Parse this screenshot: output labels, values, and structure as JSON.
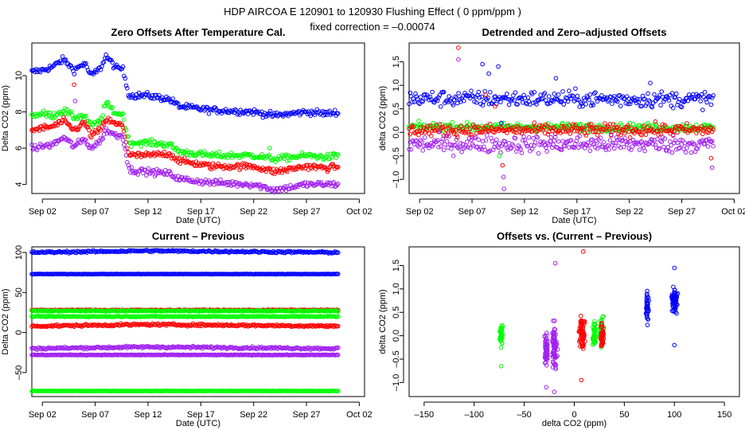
{
  "figure": {
    "title": "HDP   AIRCOA E   120901 to 120930   Flushing Effect ( 0 ppm/ppm )",
    "subtitle": "fixed correction = –0.00074"
  },
  "colors": {
    "blue": "#0000ff",
    "green": "#00ff00",
    "red": "#ff0000",
    "purple": "#a020f0"
  },
  "chart_data": [
    {
      "id": "zero-offsets",
      "type": "scatter",
      "title": "Zero Offsets After Temperature Cal.",
      "xlabel": "Date (UTC)",
      "ylabel": "Delta CO2 (ppm)",
      "xlim": [
        0,
        31.5
      ],
      "ylim": [
        3.5,
        11.8
      ],
      "xticks": [
        1,
        6,
        11,
        16,
        21,
        26,
        31
      ],
      "xticklabels": [
        "Sep 02",
        "Sep 07",
        "Sep 12",
        "Sep 17",
        "Sep 22",
        "Sep 27",
        "Oct 02"
      ],
      "yticks": [
        4,
        6,
        8,
        10
      ],
      "yticklabels": [
        "4",
        "6",
        "8",
        "10"
      ],
      "series": [
        {
          "name": "blue",
          "color": "blue",
          "noise": 0.12,
          "segments": [
            [
              0,
              10.2
            ],
            [
              1,
              10.3
            ],
            [
              2,
              10.5
            ],
            [
              3,
              10.9
            ],
            [
              4,
              10.3
            ],
            [
              5,
              10.7
            ],
            [
              5.6,
              10.0
            ],
            [
              6.5,
              10.4
            ],
            [
              7,
              11.1
            ],
            [
              8,
              10.4
            ],
            [
              8.6,
              10.4
            ],
            [
              9.2,
              8.9
            ],
            [
              11,
              8.9
            ],
            [
              13,
              8.7
            ],
            [
              14,
              8.3
            ],
            [
              17,
              8.1
            ],
            [
              21,
              8.0
            ],
            [
              23,
              7.8
            ],
            [
              26,
              8.0
            ],
            [
              28,
              7.9
            ],
            [
              29,
              8.0
            ]
          ]
        },
        {
          "name": "green",
          "color": "green",
          "noise": 0.12,
          "segments": [
            [
              0,
              7.8
            ],
            [
              1,
              7.9
            ],
            [
              2,
              7.8
            ],
            [
              3,
              8.1
            ],
            [
              4,
              7.7
            ],
            [
              5,
              7.8
            ],
            [
              5.6,
              7.2
            ],
            [
              6.5,
              7.5
            ],
            [
              7,
              8.5
            ],
            [
              8,
              7.9
            ],
            [
              8.6,
              7.9
            ],
            [
              9.2,
              6.3
            ],
            [
              11,
              6.3
            ],
            [
              13,
              6.2
            ],
            [
              14,
              5.8
            ],
            [
              17,
              5.6
            ],
            [
              21,
              5.6
            ],
            [
              23,
              5.4
            ],
            [
              26,
              5.6
            ],
            [
              28,
              5.5
            ],
            [
              29,
              5.6
            ]
          ]
        },
        {
          "name": "red",
          "color": "red",
          "noise": 0.12,
          "segments": [
            [
              0,
              7.0
            ],
            [
              1,
              7.1
            ],
            [
              2,
              7.2
            ],
            [
              3,
              7.5
            ],
            [
              4,
              7.0
            ],
            [
              5,
              7.4
            ],
            [
              5.6,
              6.7
            ],
            [
              6.5,
              7.0
            ],
            [
              7,
              7.6
            ],
            [
              8,
              7.3
            ],
            [
              8.6,
              7.3
            ],
            [
              9.2,
              5.6
            ],
            [
              11,
              5.6
            ],
            [
              13,
              5.7
            ],
            [
              14,
              5.3
            ],
            [
              17,
              5.0
            ],
            [
              21,
              5.0
            ],
            [
              23,
              4.7
            ],
            [
              26,
              5.0
            ],
            [
              28,
              4.9
            ],
            [
              29,
              5.0
            ]
          ]
        },
        {
          "name": "purple",
          "color": "purple",
          "noise": 0.12,
          "segments": [
            [
              0,
              6.0
            ],
            [
              1,
              6.1
            ],
            [
              2,
              6.2
            ],
            [
              3,
              6.6
            ],
            [
              4,
              6.1
            ],
            [
              5,
              6.5
            ],
            [
              5.6,
              6.0
            ],
            [
              6.5,
              6.4
            ],
            [
              7,
              7.0
            ],
            [
              8,
              6.7
            ],
            [
              8.6,
              6.7
            ],
            [
              9.2,
              4.8
            ],
            [
              11,
              4.7
            ],
            [
              13,
              4.6
            ],
            [
              14,
              4.3
            ],
            [
              17,
              4.1
            ],
            [
              21,
              4.0
            ],
            [
              23,
              3.7
            ],
            [
              26,
              4.0
            ],
            [
              28,
              4.0
            ],
            [
              29,
              4.0
            ]
          ]
        }
      ],
      "outliers": [
        {
          "color": "red",
          "x": 4.0,
          "y": 9.5
        },
        {
          "color": "purple",
          "x": 4.1,
          "y": 8.6
        },
        {
          "color": "green",
          "x": 22.5,
          "y": 6.0
        }
      ]
    },
    {
      "id": "detrended",
      "type": "scatter",
      "title": "Detrended and Zero–adjusted Offsets",
      "xlabel": "Date (UTC)",
      "ylabel": "delta CO2 (ppm)",
      "xlim": [
        0,
        31.5
      ],
      "ylim": [
        -1.3,
        1.9
      ],
      "xticks": [
        1,
        6,
        11,
        16,
        21,
        26,
        31
      ],
      "xticklabels": [
        "Sep 02",
        "Sep 07",
        "Sep 12",
        "Sep 17",
        "Sep 22",
        "Sep 27",
        "Oct 02"
      ],
      "yticks": [
        -1.0,
        -0.5,
        0.0,
        0.5,
        1.0,
        1.5
      ],
      "yticklabels": [
        "–1.0",
        "–0.5",
        "0.0",
        "0.5",
        "1.0",
        "1.5"
      ],
      "series": [
        {
          "name": "blue",
          "color": "blue",
          "noise": 0.12,
          "segments": [
            [
              0,
              0.72
            ],
            [
              29,
              0.7
            ]
          ]
        },
        {
          "name": "green",
          "color": "green",
          "noise": 0.06,
          "segments": [
            [
              0,
              0.12
            ],
            [
              29,
              0.1
            ]
          ]
        },
        {
          "name": "red",
          "color": "red",
          "noise": 0.09,
          "segments": [
            [
              0,
              0.05
            ],
            [
              29,
              0.05
            ]
          ]
        },
        {
          "name": "purple",
          "color": "purple",
          "noise": 0.13,
          "segments": [
            [
              0,
              -0.25
            ],
            [
              29,
              -0.25
            ]
          ]
        }
      ],
      "outliers": [
        {
          "color": "red",
          "x": 4.7,
          "y": 1.8
        },
        {
          "color": "purple",
          "x": 4.7,
          "y": 1.55
        },
        {
          "color": "blue",
          "x": 7.0,
          "y": 1.45
        },
        {
          "color": "blue",
          "x": 7.6,
          "y": 1.25
        },
        {
          "color": "blue",
          "x": 8.5,
          "y": 1.4
        },
        {
          "color": "red",
          "x": 7.3,
          "y": 0.8
        },
        {
          "color": "red",
          "x": 8.2,
          "y": 0.55
        },
        {
          "color": "blue",
          "x": 8.8,
          "y": 0.2
        },
        {
          "color": "green",
          "x": 8.6,
          "y": -0.5
        },
        {
          "color": "red",
          "x": 8.9,
          "y": -0.7
        },
        {
          "color": "purple",
          "x": 9.0,
          "y": -0.95
        },
        {
          "color": "purple",
          "x": 9.05,
          "y": -1.2
        },
        {
          "color": "blue",
          "x": 14.0,
          "y": 1.15
        },
        {
          "color": "blue",
          "x": 23.0,
          "y": 1.05
        },
        {
          "color": "red",
          "x": 28.8,
          "y": -0.55
        },
        {
          "color": "purple",
          "x": 28.9,
          "y": -0.75
        }
      ]
    },
    {
      "id": "current-previous",
      "type": "scatter",
      "title": "Current – Previous",
      "xlabel": "Date (UTC)",
      "ylabel": "Delta CO2 (ppm)",
      "xlim": [
        0,
        31.5
      ],
      "ylim": [
        -80,
        107
      ],
      "xticks": [
        1,
        6,
        11,
        16,
        21,
        26,
        31
      ],
      "xticklabels": [
        "Sep 02",
        "Sep 07",
        "Sep 12",
        "Sep 17",
        "Sep 22",
        "Sep 27",
        "Oct 02"
      ],
      "yticks": [
        -50,
        0,
        50,
        100
      ],
      "yticklabels": [
        "–50",
        "0",
        "50",
        "100"
      ],
      "series": [
        {
          "name": "blue",
          "color": "blue",
          "noise": 0.9,
          "segments": [
            [
              0,
              100
            ],
            [
              11,
              102
            ],
            [
              29,
              100
            ]
          ]
        },
        {
          "name": "blue",
          "color": "blue",
          "noise": 0.2,
          "segments": [
            [
              0,
              73
            ],
            [
              29,
              73
            ]
          ]
        },
        {
          "name": "red",
          "color": "red",
          "noise": 0.4,
          "segments": [
            [
              0,
              28
            ],
            [
              29,
              28
            ]
          ]
        },
        {
          "name": "green",
          "color": "green",
          "noise": 0.4,
          "segments": [
            [
              0,
              27
            ],
            [
              29,
              27
            ]
          ]
        },
        {
          "name": "green",
          "color": "green",
          "noise": 0.4,
          "segments": [
            [
              0,
              20
            ],
            [
              29,
              20
            ]
          ]
        },
        {
          "name": "red",
          "color": "red",
          "noise": 1.0,
          "segments": [
            [
              0,
              8
            ],
            [
              11,
              10
            ],
            [
              29,
              8
            ]
          ]
        },
        {
          "name": "purple",
          "color": "purple",
          "noise": 1.0,
          "segments": [
            [
              0,
              -20
            ],
            [
              11,
              -18
            ],
            [
              29,
              -20
            ]
          ]
        },
        {
          "name": "purple",
          "color": "purple",
          "noise": 0.3,
          "segments": [
            [
              0,
              -28
            ],
            [
              29,
              -28
            ]
          ]
        },
        {
          "name": "green",
          "color": "green",
          "noise": 0.2,
          "segments": [
            [
              0,
              -73
            ],
            [
              29,
              -73
            ]
          ]
        }
      ],
      "outliers": []
    },
    {
      "id": "offsets-vs",
      "type": "scatter",
      "title": "Offsets vs. (Current – Previous)",
      "xlabel": "delta CO2 (ppm)",
      "ylabel": "delta CO2 (ppm)",
      "xlim": [
        -165,
        165
      ],
      "ylim": [
        -1.3,
        1.9
      ],
      "xticks": [
        -150,
        -100,
        -50,
        0,
        50,
        100,
        150
      ],
      "xticklabels": [
        "–150",
        "–100",
        "–50",
        "0",
        "50",
        "100",
        "150"
      ],
      "yticks": [
        -1.0,
        -0.5,
        0.0,
        0.5,
        1.0,
        1.5
      ],
      "yticklabels": [
        "–1.0",
        "–0.5",
        "0.0",
        "0.5",
        "1.0",
        "1.5"
      ],
      "clusters": [
        {
          "color": "green",
          "x": -73,
          "xspread": 1.5,
          "y": 0.0,
          "yspread": 0.18,
          "count": 35
        },
        {
          "color": "purple",
          "x": -28,
          "xspread": 2,
          "y": -0.3,
          "yspread": 0.25,
          "count": 55
        },
        {
          "color": "purple",
          "x": -20,
          "xspread": 3,
          "y": -0.2,
          "yspread": 0.3,
          "count": 70
        },
        {
          "color": "red",
          "x": 8,
          "xspread": 3,
          "y": 0.05,
          "yspread": 0.25,
          "count": 70
        },
        {
          "color": "green",
          "x": 20,
          "xspread": 2,
          "y": 0.05,
          "yspread": 0.2,
          "count": 45
        },
        {
          "color": "green",
          "x": 27,
          "xspread": 2,
          "y": 0.1,
          "yspread": 0.2,
          "count": 45
        },
        {
          "color": "red",
          "x": 28,
          "xspread": 2,
          "y": 0.0,
          "yspread": 0.2,
          "count": 40
        },
        {
          "color": "blue",
          "x": 73,
          "xspread": 1.5,
          "y": 0.6,
          "yspread": 0.2,
          "count": 40
        },
        {
          "color": "blue",
          "x": 100,
          "xspread": 3,
          "y": 0.75,
          "yspread": 0.18,
          "count": 90
        }
      ],
      "outliers": [
        {
          "color": "red",
          "x": 9,
          "y": 1.8
        },
        {
          "color": "purple",
          "x": -19,
          "y": 1.55
        },
        {
          "color": "purple",
          "x": -28,
          "y": -1.1
        },
        {
          "color": "purple",
          "x": -20,
          "y": -1.2
        },
        {
          "color": "green",
          "x": -73,
          "y": -0.65
        },
        {
          "color": "red",
          "x": 7,
          "y": -0.95
        },
        {
          "color": "blue",
          "x": 100,
          "y": -0.2
        },
        {
          "color": "blue",
          "x": 100,
          "y": 1.45
        }
      ]
    }
  ]
}
